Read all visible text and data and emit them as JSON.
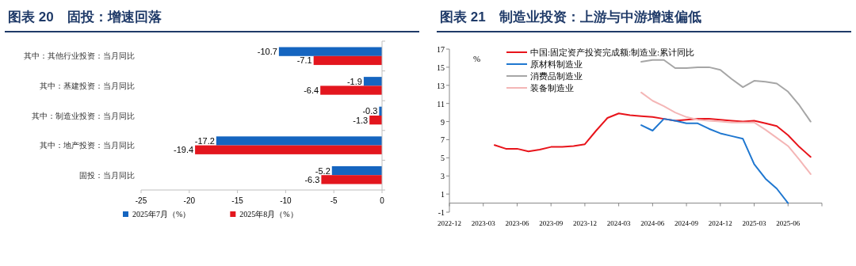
{
  "chart_data": [
    {
      "type": "bar",
      "orientation": "horizontal",
      "title": "图表 20　固投：增速回落",
      "categories": [
        "其中：其他行业投资：当月同比",
        "其中：基建投资：当月同比",
        "其中：制造业投资：当月同比",
        "其中：地产投资：当月同比",
        "固投：当月同比"
      ],
      "series": [
        {
          "name": "2025年7月（%）",
          "color": "#1565c0",
          "values": [
            -10.7,
            -1.9,
            -0.3,
            -17.2,
            -5.2
          ]
        },
        {
          "name": "2025年8月（%）",
          "color": "#e3161e",
          "values": [
            -7.1,
            -6.4,
            -1.3,
            -19.4,
            -6.3
          ]
        }
      ],
      "xlim": [
        -25,
        0
      ],
      "xticks": [
        -25,
        -20,
        -15,
        -10,
        -5,
        0
      ],
      "data_labels": true,
      "legend": "bottom"
    },
    {
      "type": "line",
      "title": "图表 21　制造业投资：上游与中游增速偏低",
      "ylabel": "%",
      "series": [
        {
          "name": "中国:固定资产投资完成额:制造业:累计同比",
          "color": "#e8141b",
          "x": [
            "2023-04",
            "2023-05",
            "2023-06",
            "2023-07",
            "2023-08",
            "2023-09",
            "2023-10",
            "2023-11",
            "2023-12",
            "2024-01",
            "2024-02",
            "2024-03",
            "2024-04",
            "2024-05",
            "2024-06",
            "2024-07",
            "2024-08",
            "2024-09",
            "2024-10",
            "2024-11",
            "2024-12",
            "2025-01",
            "2025-02",
            "2025-03",
            "2025-04",
            "2025-05",
            "2025-06",
            "2025-07",
            "2025-08"
          ],
          "values": [
            6.4,
            6.0,
            6.0,
            5.7,
            5.9,
            6.2,
            6.2,
            6.3,
            6.5,
            8.0,
            9.4,
            9.9,
            9.7,
            9.6,
            9.5,
            9.3,
            9.1,
            9.2,
            9.3,
            9.3,
            9.2,
            9.1,
            9.0,
            9.1,
            8.8,
            8.5,
            7.5,
            6.2,
            5.1
          ]
        },
        {
          "name": "原材料制造业",
          "color": "#1f77d0",
          "x": [
            "2024-05",
            "2024-06",
            "2024-07",
            "2024-08",
            "2024-09",
            "2024-10",
            "2024-11",
            "2024-12",
            "2025-01",
            "2025-02",
            "2025-03",
            "2025-04",
            "2025-05",
            "2025-06"
          ],
          "values": [
            8.6,
            8.0,
            9.3,
            9.1,
            8.8,
            8.8,
            8.2,
            7.7,
            7.4,
            7.1,
            4.3,
            2.7,
            1.6,
            0
          ]
        },
        {
          "name": "消费品制造业",
          "color": "#a6a6a6",
          "x": [
            "2024-05",
            "2024-06",
            "2024-07",
            "2024-08",
            "2024-09",
            "2024-10",
            "2024-11",
            "2024-12",
            "2025-01",
            "2025-02",
            "2025-03",
            "2025-04",
            "2025-05",
            "2025-06",
            "2025-07",
            "2025-08"
          ],
          "values": [
            15.6,
            15.8,
            15.8,
            14.9,
            14.9,
            15.0,
            15.0,
            14.7,
            13.7,
            12.8,
            13.5,
            13.4,
            13.2,
            12.3,
            10.8,
            9.0
          ]
        },
        {
          "name": "装备制造业",
          "color": "#f4b6b6",
          "x": [
            "2024-05",
            "2024-06",
            "2024-07",
            "2024-08",
            "2024-09",
            "2024-10",
            "2024-11",
            "2024-12",
            "2025-01",
            "2025-02",
            "2025-03",
            "2025-04",
            "2025-05",
            "2025-06",
            "2025-07",
            "2025-08"
          ],
          "values": [
            12.2,
            11.3,
            10.7,
            10.0,
            9.5,
            9.2,
            9.1,
            9.0,
            8.9,
            8.9,
            8.9,
            8.1,
            7.2,
            6.3,
            4.8,
            3.2
          ]
        }
      ],
      "xlim": [
        "2022-12",
        "2025-09"
      ],
      "xticks": [
        "2022-12",
        "2023-03",
        "2023-06",
        "2023-09",
        "2023-12",
        "2024-03",
        "2024-06",
        "2024-09",
        "2024-12",
        "2025-03",
        "2025-06"
      ],
      "ylim": [
        -1,
        17
      ],
      "yticks": [
        -1,
        1,
        3,
        5,
        7,
        9,
        11,
        13,
        15,
        17
      ],
      "legend": "top"
    }
  ]
}
